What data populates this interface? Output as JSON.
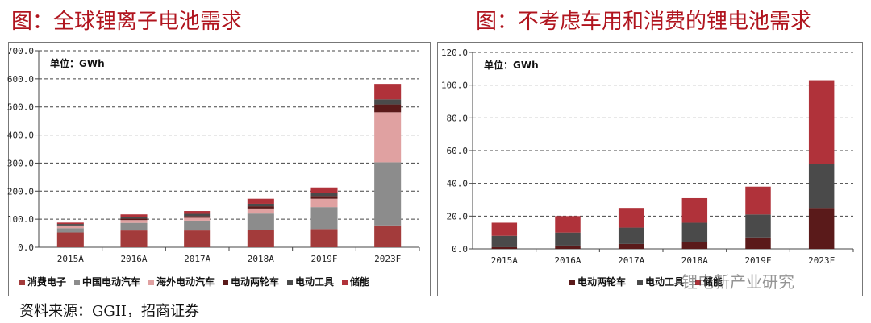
{
  "left": {
    "title": "图：全球锂离子电池需求",
    "unit_label": "单位：GWh",
    "source": "资料来源：GGII，招商证券"
  },
  "right": {
    "title": "图：不考虑车用和消费的锂电池需求",
    "unit_label": "单位：GWh",
    "watermark": "锂电新产业研究"
  },
  "colors": {
    "消费电子": "#a33b3b",
    "中国电动汽车": "#8c8c8c",
    "海外电动汽车": "#e0a1a1",
    "电动两轮车": "#5a1a1a",
    "电动工具": "#4a4a4a",
    "储能": "#b0323a"
  },
  "chart_data": [
    {
      "type": "bar",
      "stacked": true,
      "title": "图：全球锂离子电池需求",
      "unit": "单位：GWh",
      "categories": [
        "2015A",
        "2016A",
        "2017A",
        "2018A",
        "2019F",
        "2023F"
      ],
      "ylim": [
        0,
        700
      ],
      "yticks": [
        "0.0",
        "100.0",
        "200.0",
        "300.0",
        "400.0",
        "500.0",
        "600.0",
        "700.0"
      ],
      "grid": "dashed horizontal",
      "legend_position": "bottom",
      "series": [
        {
          "name": "消费电子",
          "values": [
            53,
            60,
            60,
            63,
            65,
            78
          ]
        },
        {
          "name": "中国电动汽车",
          "values": [
            15,
            27,
            35,
            57,
            78,
            225
          ]
        },
        {
          "name": "海外电动汽车",
          "values": [
            7,
            10,
            10,
            18,
            30,
            178
          ]
        },
        {
          "name": "电动两轮车",
          "values": [
            3,
            5,
            6,
            8,
            10,
            28
          ]
        },
        {
          "name": "电动工具",
          "values": [
            5,
            7,
            8,
            9,
            10,
            18
          ]
        },
        {
          "name": "储能",
          "values": [
            5,
            8,
            10,
            18,
            20,
            55
          ]
        }
      ]
    },
    {
      "type": "bar",
      "stacked": true,
      "title": "图：不考虑车用和消费的锂电池需求",
      "unit": "单位：GWh",
      "categories": [
        "2015A",
        "2016A",
        "2017A",
        "2018A",
        "2019F",
        "2023F"
      ],
      "ylim": [
        0,
        120
      ],
      "yticks": [
        "0.0",
        "20.0",
        "40.0",
        "60.0",
        "80.0",
        "100.0",
        "120.0"
      ],
      "grid": "dashed horizontal",
      "legend_position": "bottom",
      "series": [
        {
          "name": "电动两轮车",
          "values": [
            1,
            2,
            3,
            4,
            7,
            25
          ]
        },
        {
          "name": "电动工具",
          "values": [
            7,
            8,
            10,
            12,
            14,
            27
          ]
        },
        {
          "name": "储能",
          "values": [
            8,
            10,
            12,
            15,
            17,
            51
          ]
        }
      ]
    }
  ]
}
